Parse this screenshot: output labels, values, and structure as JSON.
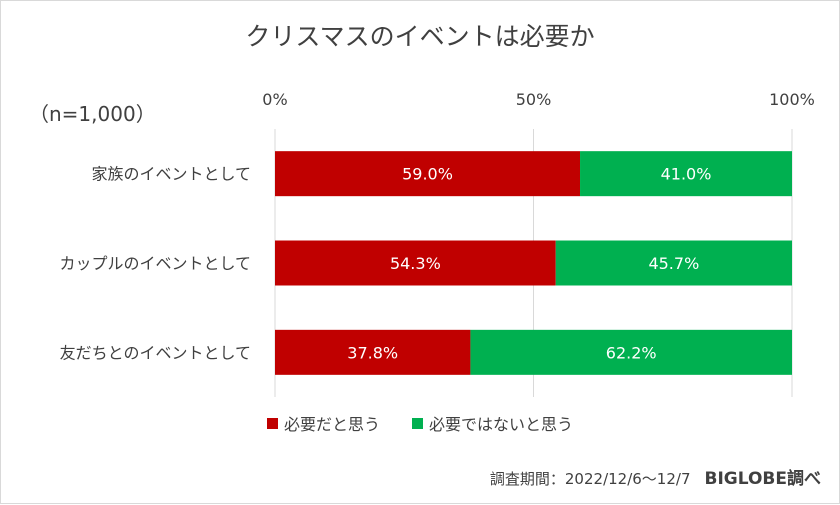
{
  "title": "クリスマスのイベントは必要か",
  "note": "（n=1,000）",
  "source": "調査期間：2022/12/6～12/7",
  "brand": "BIGLOBE調べ",
  "colors": {
    "series1": "#c00000",
    "series2": "#00b050",
    "grid": "#d9d9d9",
    "label": "#ffffff"
  },
  "chart_data": {
    "type": "bar",
    "orientation": "horizontal",
    "stacked": true,
    "categories": [
      "家族のイベントとして",
      "カップルのイベントとして",
      "友だちとのイベントとして"
    ],
    "series": [
      {
        "name": "必要だと思う",
        "values": [
          59.0,
          54.3,
          37.8
        ],
        "labels": [
          "59.0%",
          "54.3%",
          "37.8%"
        ]
      },
      {
        "name": "必要ではないと思う",
        "values": [
          41.0,
          45.7,
          62.2
        ],
        "labels": [
          "41.0%",
          "45.7%",
          "62.2%"
        ]
      }
    ],
    "x_ticks": [
      "0%",
      "50%",
      "100%"
    ],
    "xlim": [
      0,
      100
    ],
    "grid": true,
    "legend": "bottom"
  }
}
